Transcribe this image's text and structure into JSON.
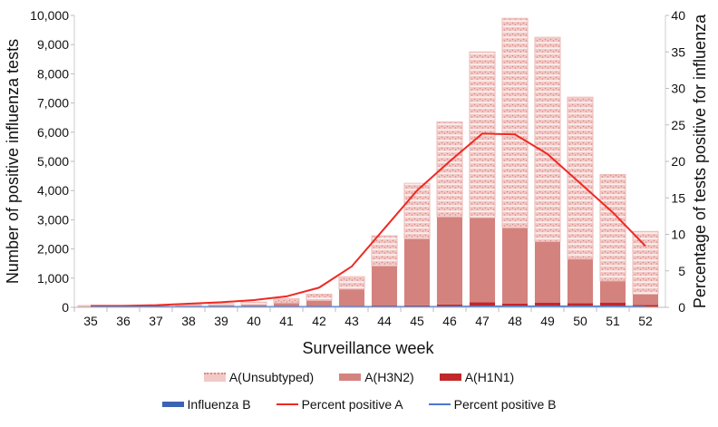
{
  "chart_data": {
    "type": "bar",
    "xlabel": "Surveillance  week",
    "ylabel": "Number of positive influenza tests",
    "y2label": "Percentage of tests positive for influenza",
    "ylim": [
      0,
      10000
    ],
    "y2lim": [
      0,
      40
    ],
    "yticks": [
      0,
      1000,
      2000,
      3000,
      4000,
      5000,
      6000,
      7000,
      8000,
      9000,
      10000
    ],
    "ytick_labels": [
      "0",
      "1,000",
      "2,000",
      "3,000",
      "4,000",
      "5,000",
      "6,000",
      "7,000",
      "8,000",
      "9,000",
      "10,000"
    ],
    "y2ticks": [
      0,
      5,
      10,
      15,
      20,
      25,
      30,
      35,
      40
    ],
    "categories": [
      "35",
      "36",
      "37",
      "38",
      "39",
      "40",
      "41",
      "42",
      "43",
      "44",
      "45",
      "46",
      "47",
      "48",
      "49",
      "50",
      "51",
      "52"
    ],
    "series": [
      {
        "name": "Influenza B",
        "kind": "bar",
        "color": "#3a62b5",
        "values": [
          10,
          10,
          10,
          10,
          15,
          15,
          15,
          15,
          15,
          20,
          20,
          20,
          25,
          25,
          25,
          25,
          25,
          20
        ]
      },
      {
        "name": "A(H1N1)",
        "kind": "bar",
        "color": "#c0282a",
        "values": [
          5,
          5,
          5,
          10,
          10,
          10,
          15,
          20,
          30,
          40,
          50,
          80,
          150,
          100,
          130,
          120,
          140,
          60
        ]
      },
      {
        "name": "A(H3N2)",
        "kind": "bar",
        "color": "#d4827e",
        "values": [
          20,
          15,
          20,
          40,
          50,
          70,
          120,
          200,
          580,
          1360,
          2280,
          3000,
          2900,
          2600,
          2100,
          1510,
          740,
          370
        ]
      },
      {
        "name": "A(Unsubtyped)",
        "kind": "bar",
        "color": "#e8aaa6",
        "values": [
          25,
          10,
          15,
          40,
          55,
          85,
          150,
          215,
          425,
          1030,
          1900,
          3250,
          5675,
          7175,
          6995,
          5545,
          3645,
          2150
        ]
      },
      {
        "name": "Percent positive A",
        "kind": "line",
        "axis": "right",
        "color": "#ee2a24",
        "values": [
          0.2,
          0.2,
          0.3,
          0.5,
          0.7,
          1.0,
          1.5,
          2.7,
          5.6,
          10.8,
          16,
          20,
          23.8,
          23.7,
          21,
          17,
          13,
          8.4
        ]
      },
      {
        "name": "Percent positive B",
        "kind": "line",
        "axis": "right",
        "color": "#4a78d0",
        "values": [
          0.1,
          0.1,
          0.1,
          0.1,
          0.1,
          0.1,
          0.1,
          0.1,
          0.1,
          0.1,
          0.1,
          0.1,
          0.15,
          0.15,
          0.15,
          0.15,
          0.15,
          0.1
        ]
      }
    ],
    "legend": [
      "A(Unsubtyped)",
      "A(H3N2)",
      "A(H1N1)",
      "Influenza B",
      "Percent positive A",
      "Percent positive B"
    ],
    "legend_position": "bottom"
  }
}
